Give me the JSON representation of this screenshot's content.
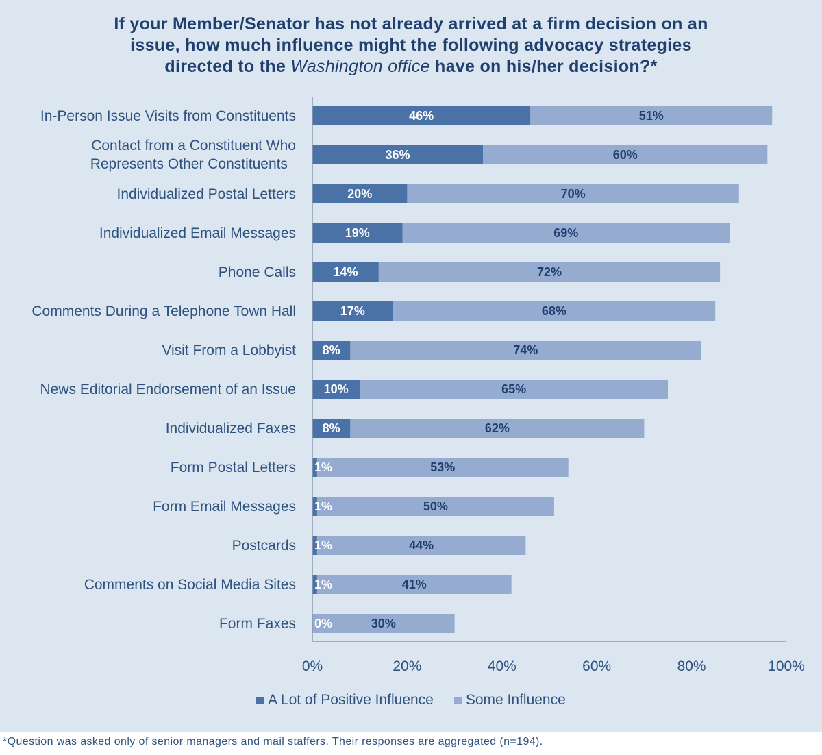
{
  "title": {
    "line1": "If your Member/Senator has not already arrived at a firm decision on an",
    "line2": "issue, how much influence might the following advocacy strategies",
    "line3_pre": "directed to the ",
    "line3_em": "Washington office",
    "line3_post": " have on his/her decision?*"
  },
  "footnote": "*Question was asked only of senior managers and mail staffers. Their responses are aggregated (n=194).",
  "colors": {
    "background": "#dce6f1",
    "a_lot": "#4a72a6",
    "some": "#95abd0",
    "text": "#2e5380",
    "axis": "#8c9aae"
  },
  "chart_data": {
    "type": "bar",
    "orientation": "horizontal",
    "stacked": true,
    "categories": [
      "In-Person Issue Visits from Constituents",
      "Contact from a Constituent Who\nRepresents Other Constituents",
      "Individualized Postal Letters",
      "Individualized Email Messages",
      "Phone Calls",
      "Comments During a Telephone Town Hall",
      "Visit From a Lobbyist",
      "News Editorial Endorsement of an Issue",
      "Individualized Faxes",
      "Form Postal Letters",
      "Form Email Messages",
      "Postcards",
      "Comments on Social Media Sites",
      "Form Faxes"
    ],
    "series": [
      {
        "name": "A Lot of Positive Influence",
        "values": [
          46,
          36,
          20,
          19,
          14,
          17,
          8,
          10,
          8,
          1,
          1,
          1,
          1,
          0
        ]
      },
      {
        "name": "Some Influence",
        "values": [
          51,
          60,
          70,
          69,
          72,
          68,
          74,
          65,
          62,
          53,
          50,
          44,
          41,
          30
        ]
      }
    ],
    "value_labels": [
      [
        "46%",
        "36%",
        "20%",
        "19%",
        "14%",
        "17%",
        "8%",
        "10%",
        "8%",
        "1%",
        "1%",
        "1%",
        "1%",
        "0%"
      ],
      [
        "51%",
        "60%",
        "70%",
        "69%",
        "72%",
        "68%",
        "74%",
        "65%",
        "62%",
        "53%",
        "50%",
        "44%",
        "41%",
        "30%"
      ]
    ],
    "xlim": [
      0,
      100
    ],
    "xticks": [
      "0%",
      "20%",
      "40%",
      "60%",
      "80%",
      "100%"
    ],
    "xlabel": "",
    "ylabel": "",
    "grid": false,
    "legend_position": "bottom"
  }
}
